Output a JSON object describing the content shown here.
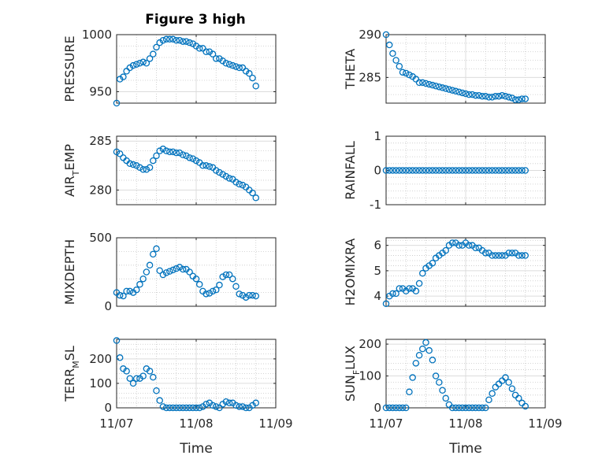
{
  "chart_data": {
    "figure_title": "Figure 3 high",
    "type": "scatter",
    "marker": "open-circle",
    "marker_color": "#0072BD",
    "grid": "major-solid-minor-dotted",
    "x_ticks": [
      "11/07",
      "11/08",
      "11/09"
    ],
    "x_label": "Time",
    "x_note": "x values in hours since 11/07 00:00 (~1 hour spacing)",
    "panels": [
      {
        "id": "pressure",
        "ylabel": "PRESSURE",
        "ylabel_sub": "",
        "ylabel_after": "",
        "ylim": [
          940,
          1000
        ],
        "yticks": [
          950,
          1000
        ],
        "x": [
          0,
          1,
          2,
          3,
          4,
          5,
          6,
          7,
          8,
          9,
          10,
          11,
          12,
          13,
          14,
          15,
          16,
          17,
          18,
          19,
          20,
          21,
          22,
          23,
          24,
          25,
          26,
          27,
          28,
          29,
          30,
          31,
          32,
          33,
          34,
          35,
          36,
          37,
          38,
          39,
          40,
          41,
          42
        ],
        "y": [
          940,
          961,
          963,
          968,
          971,
          973,
          974,
          975,
          976,
          975,
          979,
          983,
          989,
          993,
          995,
          996,
          996,
          996,
          995,
          995,
          994,
          994,
          993,
          992,
          990,
          988,
          988,
          985,
          985,
          983,
          979,
          979,
          977,
          975,
          974,
          973,
          972,
          971,
          971,
          968,
          966,
          962,
          955
        ]
      },
      {
        "id": "theta",
        "ylabel": "THETA",
        "ylabel_sub": "",
        "ylabel_after": "",
        "ylim": [
          282,
          290
        ],
        "yticks": [
          285,
          290
        ],
        "x": [
          0,
          1,
          2,
          3,
          4,
          5,
          6,
          7,
          8,
          9,
          10,
          11,
          12,
          13,
          14,
          15,
          16,
          17,
          18,
          19,
          20,
          21,
          22,
          23,
          24,
          25,
          26,
          27,
          28,
          29,
          30,
          31,
          32,
          33,
          34,
          35,
          36,
          37,
          38,
          39,
          40,
          41,
          42
        ],
        "y": [
          290,
          288.8,
          287.8,
          287.0,
          286.3,
          285.6,
          285.5,
          285.3,
          285.1,
          284.8,
          284.4,
          284.4,
          284.3,
          284.2,
          284.1,
          284.0,
          283.9,
          283.8,
          283.7,
          283.6,
          283.5,
          283.4,
          283.3,
          283.2,
          283.1,
          283.0,
          283.0,
          282.9,
          282.9,
          282.8,
          282.8,
          282.7,
          282.7,
          282.8,
          282.8,
          282.9,
          282.8,
          282.7,
          282.6,
          282.4,
          282.4,
          282.5,
          282.5
        ]
      },
      {
        "id": "air_temp",
        "ylabel": "AIR",
        "ylabel_sub": "T",
        "ylabel_after": "EMP",
        "ylim": [
          278.5,
          285.5
        ],
        "yticks": [
          280,
          285
        ],
        "x": [
          0,
          1,
          2,
          3,
          4,
          5,
          6,
          7,
          8,
          9,
          10,
          11,
          12,
          13,
          14,
          15,
          16,
          17,
          18,
          19,
          20,
          21,
          22,
          23,
          24,
          25,
          26,
          27,
          28,
          29,
          30,
          31,
          32,
          33,
          34,
          35,
          36,
          37,
          38,
          39,
          40,
          41,
          42
        ],
        "y": [
          283.9,
          283.7,
          283.3,
          283.0,
          282.7,
          282.6,
          282.5,
          282.3,
          282.1,
          282.1,
          282.3,
          283.0,
          283.5,
          284.0,
          284.2,
          284.0,
          283.9,
          283.9,
          283.8,
          283.8,
          283.6,
          283.5,
          283.3,
          283.2,
          283.0,
          282.8,
          282.5,
          282.5,
          282.4,
          282.3,
          282.0,
          281.8,
          281.6,
          281.4,
          281.2,
          281.1,
          280.8,
          280.6,
          280.5,
          280.3,
          280.0,
          279.7,
          279.2
        ]
      },
      {
        "id": "rainfall",
        "ylabel": "RAINFALL",
        "ylabel_sub": "",
        "ylabel_after": "",
        "ylim": [
          -1,
          1
        ],
        "yticks": [
          -1,
          0,
          1
        ],
        "x": [
          0,
          1,
          2,
          3,
          4,
          5,
          6,
          7,
          8,
          9,
          10,
          11,
          12,
          13,
          14,
          15,
          16,
          17,
          18,
          19,
          20,
          21,
          22,
          23,
          24,
          25,
          26,
          27,
          28,
          29,
          30,
          31,
          32,
          33,
          34,
          35,
          36,
          37,
          38,
          39,
          40,
          41,
          42
        ],
        "y": [
          0,
          0,
          0,
          0,
          0,
          0,
          0,
          0,
          0,
          0,
          0,
          0,
          0,
          0,
          0,
          0,
          0,
          0,
          0,
          0,
          0,
          0,
          0,
          0,
          0,
          0,
          0,
          0,
          0,
          0,
          0,
          0,
          0,
          0,
          0,
          0,
          0,
          0,
          0,
          0,
          0,
          0,
          0
        ]
      },
      {
        "id": "mixdepth",
        "ylabel": "MIXDEPTH",
        "ylabel_sub": "",
        "ylabel_after": "",
        "ylim": [
          0,
          500
        ],
        "yticks": [
          0,
          500
        ],
        "x": [
          0,
          1,
          2,
          3,
          4,
          5,
          6,
          7,
          8,
          9,
          10,
          11,
          12,
          13,
          14,
          15,
          16,
          17,
          18,
          19,
          20,
          21,
          22,
          23,
          24,
          25,
          26,
          27,
          28,
          29,
          30,
          31,
          32,
          33,
          34,
          35,
          36,
          37,
          38,
          39,
          40,
          41,
          42
        ],
        "y": [
          100,
          80,
          75,
          110,
          110,
          100,
          120,
          160,
          200,
          250,
          300,
          380,
          420,
          260,
          230,
          245,
          255,
          265,
          275,
          285,
          270,
          270,
          250,
          220,
          200,
          160,
          110,
          90,
          95,
          110,
          120,
          155,
          215,
          230,
          230,
          200,
          145,
          90,
          80,
          65,
          80,
          80,
          75
        ]
      },
      {
        "id": "h2omixra",
        "ylabel": "H2OMIXRA",
        "ylabel_sub": "",
        "ylabel_after": "",
        "ylim": [
          3.6,
          6.3
        ],
        "yticks": [
          4,
          5,
          6
        ],
        "x": [
          0,
          1,
          2,
          3,
          4,
          5,
          6,
          7,
          8,
          9,
          10,
          11,
          12,
          13,
          14,
          15,
          16,
          17,
          18,
          19,
          20,
          21,
          22,
          23,
          24,
          25,
          26,
          27,
          28,
          29,
          30,
          31,
          32,
          33,
          34,
          35,
          36,
          37,
          38,
          39,
          40,
          41,
          42
        ],
        "y": [
          3.7,
          4.0,
          4.1,
          4.1,
          4.3,
          4.3,
          4.2,
          4.3,
          4.3,
          4.2,
          4.5,
          4.9,
          5.1,
          5.2,
          5.3,
          5.5,
          5.6,
          5.7,
          5.8,
          6.0,
          6.1,
          6.1,
          6.0,
          6.0,
          6.1,
          6.0,
          6.0,
          5.9,
          5.9,
          5.8,
          5.7,
          5.7,
          5.6,
          5.6,
          5.6,
          5.6,
          5.6,
          5.7,
          5.7,
          5.7,
          5.6,
          5.6,
          5.6
        ]
      },
      {
        "id": "terr_msl",
        "ylabel": "TERR",
        "ylabel_sub": "M",
        "ylabel_after": "SL",
        "ylim": [
          0,
          280
        ],
        "yticks": [
          0,
          100,
          200
        ],
        "x": [
          0,
          1,
          2,
          3,
          4,
          5,
          6,
          7,
          8,
          9,
          10,
          11,
          12,
          13,
          14,
          15,
          16,
          17,
          18,
          19,
          20,
          21,
          22,
          23,
          24,
          25,
          26,
          27,
          28,
          29,
          30,
          31,
          32,
          33,
          34,
          35,
          36,
          37,
          38,
          39,
          40,
          41,
          42
        ],
        "y": [
          275,
          205,
          160,
          150,
          120,
          100,
          120,
          120,
          130,
          160,
          150,
          125,
          70,
          30,
          5,
          0,
          0,
          0,
          0,
          0,
          0,
          0,
          0,
          0,
          0,
          0,
          5,
          15,
          20,
          10,
          5,
          0,
          15,
          25,
          20,
          20,
          10,
          5,
          5,
          0,
          0,
          10,
          20
        ]
      },
      {
        "id": "sun_flux",
        "ylabel": "SUN",
        "ylabel_sub": "F",
        "ylabel_after": "LUX",
        "ylim": [
          0,
          215
        ],
        "yticks": [
          0,
          100,
          200
        ],
        "x": [
          0,
          1,
          2,
          3,
          4,
          5,
          6,
          7,
          8,
          9,
          10,
          11,
          12,
          13,
          14,
          15,
          16,
          17,
          18,
          19,
          20,
          21,
          22,
          23,
          24,
          25,
          26,
          27,
          28,
          29,
          30,
          31,
          32,
          33,
          34,
          35,
          36,
          37,
          38,
          39,
          40,
          41,
          42
        ],
        "y": [
          0,
          0,
          0,
          0,
          0,
          0,
          0,
          50,
          95,
          140,
          165,
          185,
          205,
          180,
          150,
          100,
          80,
          55,
          30,
          10,
          0,
          0,
          0,
          0,
          0,
          0,
          0,
          0,
          0,
          0,
          0,
          25,
          45,
          65,
          75,
          85,
          95,
          80,
          60,
          40,
          30,
          15,
          5
        ]
      }
    ]
  }
}
